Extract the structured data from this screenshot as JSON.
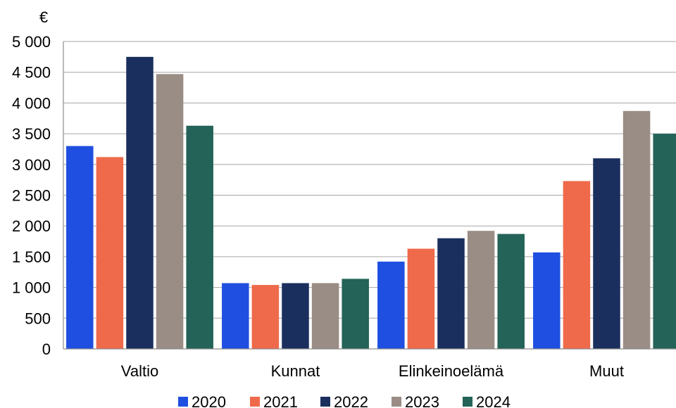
{
  "chart_data": {
    "type": "bar",
    "y_unit": "€",
    "categories": [
      "Valtio",
      "Kunnat",
      "Elinkeinoelämä",
      "Muut"
    ],
    "series": [
      {
        "name": "2020",
        "color": "#1f4fe0",
        "values": [
          3300,
          1070,
          1420,
          1570
        ]
      },
      {
        "name": "2021",
        "color": "#ef6a4b",
        "values": [
          3120,
          1040,
          1630,
          2730
        ]
      },
      {
        "name": "2022",
        "color": "#1b2f5e",
        "values": [
          4750,
          1070,
          1800,
          3100
        ]
      },
      {
        "name": "2023",
        "color": "#9a8d85",
        "values": [
          4470,
          1070,
          1920,
          3870
        ]
      },
      {
        "name": "2024",
        "color": "#246357",
        "values": [
          3630,
          1140,
          1870,
          3500
        ]
      }
    ],
    "y_ticks": [
      "0",
      "500",
      "1 000",
      "1 500",
      "2 000",
      "2 500",
      "3 000",
      "3 500",
      "4 000",
      "4 500",
      "5 000"
    ],
    "ylim": [
      0,
      5000
    ],
    "grid": true,
    "legend_position": "bottom"
  }
}
